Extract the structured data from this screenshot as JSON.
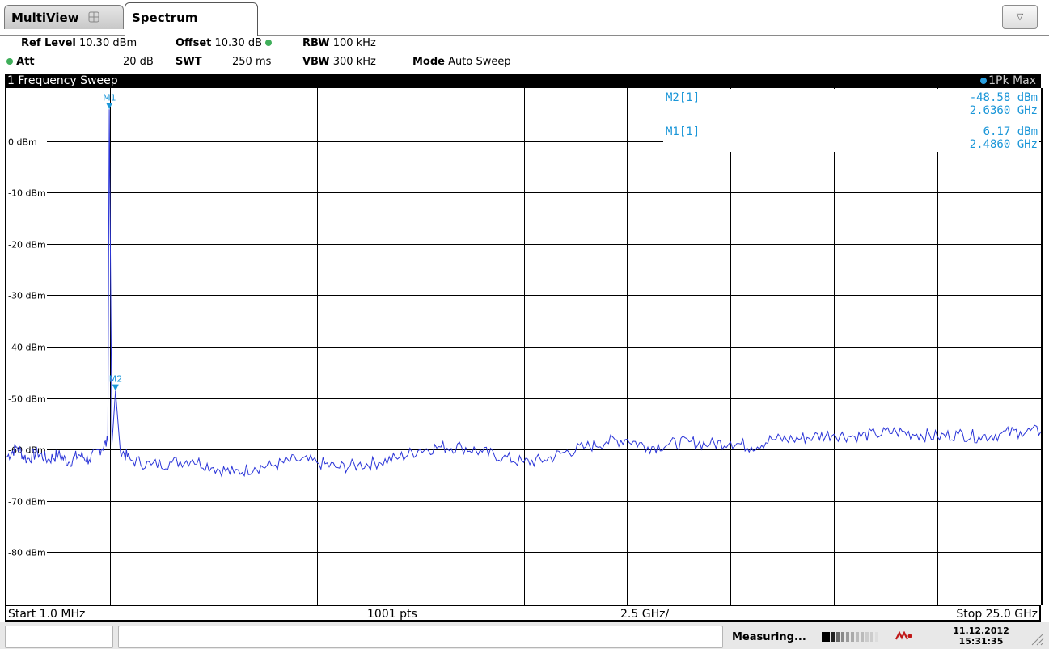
{
  "tabs": {
    "multiview_label": "MultiView",
    "spectrum_label": "Spectrum"
  },
  "settings": {
    "ref_level_label": "Ref Level",
    "ref_level_value": "10.30 dBm",
    "offset_label": "Offset",
    "offset_value": "10.30 dB",
    "rbw_label": "RBW",
    "rbw_value": "100 kHz",
    "att_label": "Att",
    "att_value": "20 dB",
    "swt_label": "SWT",
    "swt_value": "250 ms",
    "vbw_label": "VBW",
    "vbw_value": "300 kHz",
    "mode_label": "Mode",
    "mode_value": "Auto Sweep"
  },
  "diagram": {
    "title": "1 Frequency Sweep",
    "trace_label": "1Pk Max",
    "start": "Start 1.0 MHz",
    "points": "1001 pts",
    "span_per_div": "2.5 GHz/",
    "stop": "Stop 25.0 GHz"
  },
  "marker_table": [
    {
      "name": "M2[1]",
      "level": "-48.58 dBm",
      "freq": "2.6360 GHz"
    },
    {
      "name": "M1[1]",
      "level": "6.17 dBm",
      "freq": "2.4860 GHz"
    }
  ],
  "status": {
    "measuring": "Measuring...",
    "date": "11.12.2012",
    "time": "15:31:35"
  },
  "colors": {
    "trace": "#2b35d8",
    "marker": "#1a96d8",
    "grid": "#000000",
    "title_bg": "#000000"
  },
  "chart_data": {
    "type": "line",
    "title": "1 Frequency Sweep",
    "xlabel": "",
    "ylabel": "",
    "x_unit": "GHz",
    "y_unit": "dBm",
    "xlim": [
      0.001,
      25.0
    ],
    "ylim": [
      -90.3,
      10.3
    ],
    "y_ticks": [
      {
        "value": 0,
        "label": "0 dBm"
      },
      {
        "value": -10,
        "label": "-10 dBm"
      },
      {
        "value": -20,
        "label": "-20 dBm"
      },
      {
        "value": -30,
        "label": "-30 dBm"
      },
      {
        "value": -40,
        "label": "-40 dBm"
      },
      {
        "value": -50,
        "label": "-50 dBm"
      },
      {
        "value": -60,
        "label": "-60 dBm"
      },
      {
        "value": -70,
        "label": "-70 dBm"
      },
      {
        "value": -80,
        "label": "-80 dBm"
      }
    ],
    "grid": true,
    "series": [
      {
        "name": "1Pk Max",
        "x": [
          0.0,
          0.25,
          0.5,
          0.75,
          1.0,
          1.25,
          1.5,
          1.75,
          2.0,
          2.25,
          2.45,
          2.486,
          2.55,
          2.636,
          2.75,
          3.0,
          3.5,
          4.0,
          4.5,
          5.0,
          5.5,
          6.0,
          6.5,
          7.0,
          7.5,
          8.0,
          8.5,
          9.0,
          9.5,
          10.0,
          10.5,
          11.0,
          11.5,
          12.0,
          12.5,
          13.0,
          13.5,
          14.0,
          14.5,
          15.0,
          15.5,
          16.0,
          16.5,
          17.0,
          17.5,
          18.0,
          18.5,
          19.0,
          19.5,
          20.0,
          20.5,
          21.0,
          21.5,
          22.0,
          22.5,
          23.0,
          23.5,
          24.0,
          24.5,
          25.0
        ],
        "y": [
          -61.5,
          -59.5,
          -62.0,
          -60.5,
          -62.0,
          -61.0,
          -62.5,
          -61.0,
          -62.0,
          -60.0,
          -58.5,
          6.17,
          -59.0,
          -48.58,
          -60.0,
          -62.0,
          -63.0,
          -62.5,
          -62.0,
          -63.5,
          -64.5,
          -63.5,
          -63.0,
          -62.0,
          -62.5,
          -63.5,
          -63.0,
          -62.5,
          -61.5,
          -60.0,
          -59.5,
          -59.5,
          -60.5,
          -61.5,
          -62.5,
          -62.0,
          -60.5,
          -59.5,
          -58.5,
          -58.0,
          -59.5,
          -59.0,
          -58.5,
          -59.0,
          -58.5,
          -59.5,
          -58.0,
          -58.0,
          -57.5,
          -57.0,
          -57.5,
          -57.0,
          -56.5,
          -57.0,
          -57.5,
          -57.0,
          -57.5,
          -57.0,
          -56.5,
          -56.5
        ]
      }
    ],
    "markers": [
      {
        "name": "M1",
        "x": 2.486,
        "y": 6.17
      },
      {
        "name": "M2",
        "x": 2.636,
        "y": -48.58
      }
    ]
  }
}
